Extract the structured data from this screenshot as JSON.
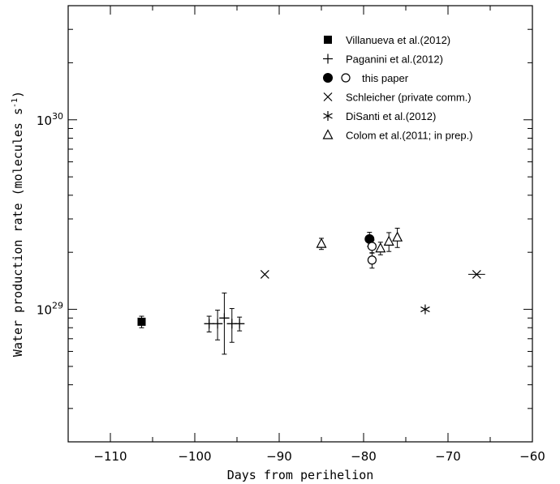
{
  "chart_data": {
    "type": "scatter",
    "xlabel": "Days from perihelion",
    "ylabel": "Water production rate (molecules s",
    "ylabel_sup": "-1",
    "ylabel_close": ")",
    "xlim": [
      -115,
      -60
    ],
    "ylim": [
      2e+28,
      4e+30
    ],
    "yscale": "log",
    "x_ticks": [
      -110,
      -100,
      -90,
      -80,
      -70,
      -60
    ],
    "x_tick_labels": [
      "−110",
      "−100",
      "−90",
      "−80",
      "−70",
      "−60"
    ],
    "y_major_ticks": [
      1e+29,
      1e+30
    ],
    "y_tick_base": "10",
    "y_tick_exponents": [
      "29",
      "30"
    ],
    "legend_position": "top-right",
    "series": [
      {
        "name": "Villanueva et al.(2012)",
        "marker": "filled-square",
        "points": [
          {
            "x": -106.3,
            "y": 8.6e+28,
            "yerr_low": 6e+27,
            "yerr_high": 6e+27
          }
        ]
      },
      {
        "name": "Paganini et al.(2012)",
        "marker": "plus",
        "points": [
          {
            "x": -98.3,
            "y": 8.4e+28,
            "yerr_low": 8e+27,
            "yerr_high": 8e+27,
            "xerr": 0.6
          },
          {
            "x": -97.3,
            "y": 8.4e+28,
            "yerr_low": 1.5e+28,
            "yerr_high": 1.5e+28,
            "xerr": 0.6
          },
          {
            "x": -96.5,
            "y": 9e+28,
            "yerr_low": 3.2e+28,
            "yerr_high": 3.2e+28,
            "xerr": 0.6
          },
          {
            "x": -95.6,
            "y": 8.4e+28,
            "yerr_low": 1.7e+28,
            "yerr_high": 1.7e+28,
            "xerr": 0.6
          },
          {
            "x": -94.7,
            "y": 8.4e+28,
            "yerr_low": 7e+27,
            "yerr_high": 7e+27,
            "xerr": 0.6
          }
        ]
      },
      {
        "name": "this paper",
        "marker": "filled-circle",
        "points": [
          {
            "x": -79.3,
            "y": 2.35e+29,
            "yerr_low": 2e+28,
            "yerr_high": 2e+28
          }
        ]
      },
      {
        "name": "this paper",
        "marker": "open-circle",
        "points": [
          {
            "x": -79.0,
            "y": 2.15e+29,
            "yerr_low": 1.7e+28,
            "yerr_high": 1.7e+28
          },
          {
            "x": -79.0,
            "y": 1.82e+29,
            "yerr_low": 1.7e+28,
            "yerr_high": 1.7e+28
          }
        ]
      },
      {
        "name": "Schleicher (private comm.)",
        "marker": "cross",
        "points": [
          {
            "x": -91.7,
            "y": 1.53e+29
          },
          {
            "x": -66.6,
            "y": 1.53e+29,
            "xerr": 1.0
          }
        ]
      },
      {
        "name": "DiSanti et al.(2012)",
        "marker": "star",
        "points": [
          {
            "x": -72.7,
            "y": 1e+29
          }
        ]
      },
      {
        "name": "Colom et al.(2011; in prep.)",
        "marker": "open-triangle",
        "points": [
          {
            "x": -85.0,
            "y": 2.22e+29,
            "yerr_low": 1.5e+28,
            "yerr_high": 1.5e+28
          },
          {
            "x": -78.0,
            "y": 2.1e+29,
            "yerr_low": 1.6e+28,
            "yerr_high": 1.6e+28
          },
          {
            "x": -77.0,
            "y": 2.28e+29,
            "yerr_low": 2.6e+28,
            "yerr_high": 2.6e+28
          },
          {
            "x": -76.0,
            "y": 2.4e+29,
            "yerr_low": 2.8e+28,
            "yerr_high": 2.8e+28
          }
        ]
      }
    ],
    "legend": [
      {
        "label": "Villanueva et al.(2012)",
        "markers": [
          "filled-square"
        ]
      },
      {
        "label": "Paganini et al.(2012)",
        "markers": [
          "plus"
        ]
      },
      {
        "label": "this paper",
        "markers": [
          "filled-circle",
          "open-circle"
        ]
      },
      {
        "label": "Schleicher (private comm.)",
        "markers": [
          "cross"
        ]
      },
      {
        "label": "DiSanti et al.(2012)",
        "markers": [
          "star"
        ]
      },
      {
        "label": "Colom et al.(2011; in prep.)",
        "markers": [
          "open-triangle"
        ]
      }
    ]
  }
}
